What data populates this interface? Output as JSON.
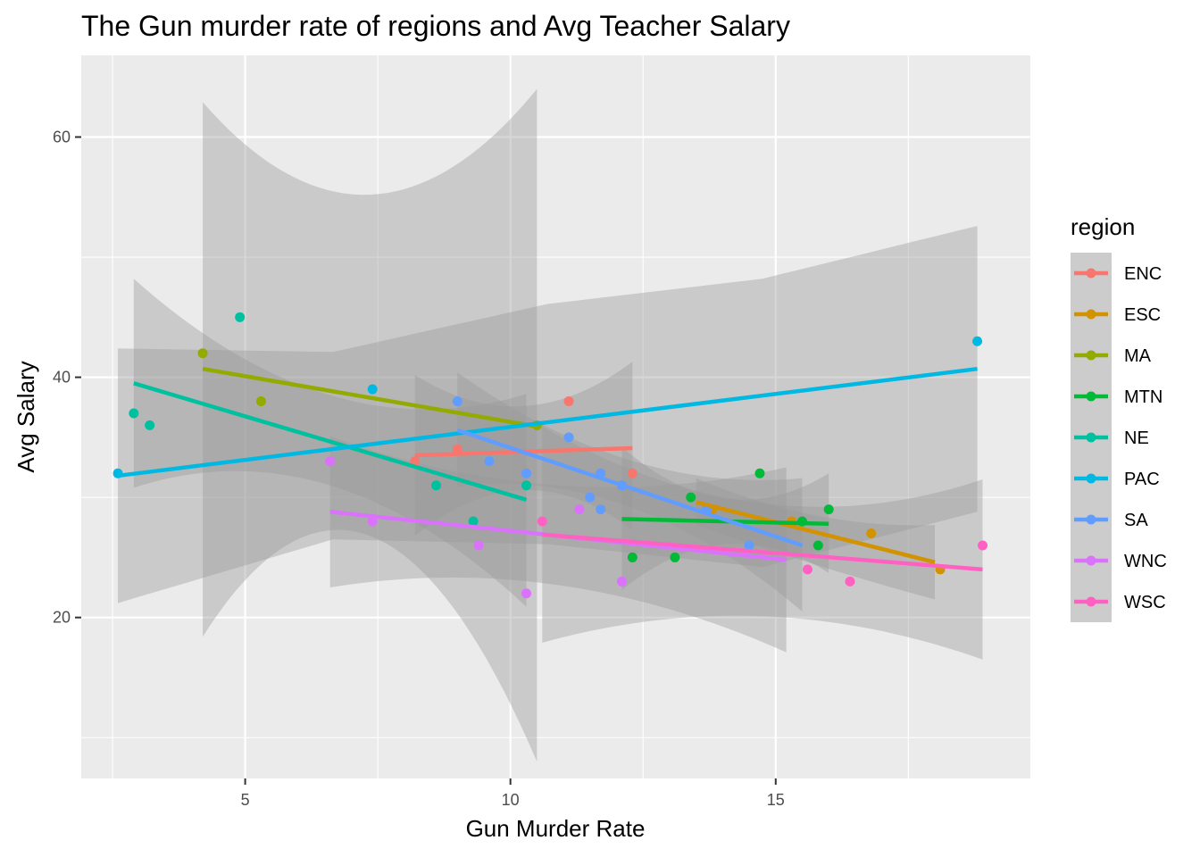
{
  "chart_data": {
    "type": "scatter",
    "title": "The Gun murder rate of regions and Avg Teacher Salary",
    "xlabel": "Gun Murder Rate",
    "ylabel": "Avg Salary",
    "xlim": [
      1.91,
      19.8
    ],
    "ylim": [
      6.6,
      66.8
    ],
    "x_ticks": [
      5,
      10,
      15
    ],
    "y_ticks": [
      20,
      40,
      60
    ],
    "grid": true,
    "legend": {
      "title": "region",
      "placement": "right"
    },
    "series": [
      {
        "name": "ENC",
        "color": "#F8766D",
        "points": [
          [
            8.2,
            33
          ],
          [
            9.0,
            34
          ],
          [
            11.1,
            38
          ],
          [
            12.3,
            32
          ],
          [
            10.3,
            32
          ]
        ],
        "fit": [
          [
            8.2,
            33.5
          ],
          [
            12.3,
            34.1
          ]
        ],
        "band": {
          "x": [
            8.2,
            10.25,
            12.3
          ],
          "lower": [
            26.8,
            30.6,
            27.3
          ],
          "upper": [
            40.2,
            37.6,
            41.3
          ]
        }
      },
      {
        "name": "ESC",
        "color": "#D39200",
        "points": [
          [
            13.8,
            29
          ],
          [
            15.3,
            28
          ],
          [
            16.8,
            27
          ],
          [
            18.1,
            24
          ]
        ],
        "fit": [
          [
            13.5,
            29.6
          ],
          [
            18.0,
            24.6
          ]
        ],
        "band": {
          "x": [
            13.5,
            15.75,
            18.0
          ],
          "lower": [
            27.7,
            24.4,
            21.5
          ],
          "upper": [
            31.6,
            28.5,
            27.7
          ]
        }
      },
      {
        "name": "MA",
        "color": "#93AA00",
        "points": [
          [
            4.2,
            42
          ],
          [
            5.3,
            38
          ],
          [
            10.5,
            36
          ]
        ],
        "fit": [
          [
            4.2,
            40.7
          ],
          [
            10.5,
            35.9
          ]
        ],
        "band": {
          "x": [
            4.2,
            7.35,
            10.5
          ],
          "lower": [
            18.4,
            26.8,
            8.0
          ],
          "upper": [
            62.9,
            55.2,
            64.0
          ]
        }
      },
      {
        "name": "MTN",
        "color": "#00BA38",
        "points": [
          [
            12.3,
            25
          ],
          [
            13.1,
            25
          ],
          [
            14.7,
            32
          ],
          [
            15.8,
            26
          ],
          [
            16.0,
            29
          ],
          [
            15.5,
            28
          ],
          [
            13.4,
            30
          ]
        ],
        "fit": [
          [
            12.1,
            28.2
          ],
          [
            16.0,
            27.8
          ]
        ],
        "band": {
          "x": [
            12.1,
            14.05,
            16.0
          ],
          "lower": [
            22.3,
            26.1,
            23.7
          ],
          "upper": [
            34.2,
            29.9,
            32.0
          ]
        }
      },
      {
        "name": "NE",
        "color": "#00C19F",
        "points": [
          [
            2.9,
            37
          ],
          [
            3.2,
            36
          ],
          [
            4.9,
            45
          ],
          [
            8.6,
            31
          ],
          [
            9.3,
            28
          ],
          [
            10.3,
            31
          ]
        ],
        "fit": [
          [
            2.9,
            39.5
          ],
          [
            10.3,
            29.8
          ]
        ],
        "band": {
          "x": [
            2.9,
            6.6,
            10.3
          ],
          "lower": [
            30.8,
            31.0,
            20.9
          ],
          "upper": [
            48.2,
            38.5,
            38.6
          ]
        }
      },
      {
        "name": "PAC",
        "color": "#00B9E3",
        "points": [
          [
            2.6,
            32
          ],
          [
            7.4,
            39
          ],
          [
            18.8,
            43
          ]
        ],
        "fit": [
          [
            2.6,
            31.8
          ],
          [
            18.8,
            40.7
          ]
        ],
        "band": {
          "x": [
            2.6,
            6.65,
            10.7,
            14.75,
            18.8
          ],
          "lower": [
            21.2,
            26.5,
            26.1,
            24.2,
            28.8
          ],
          "upper": [
            42.4,
            42.1,
            46.1,
            48.2,
            52.6
          ]
        }
      },
      {
        "name": "SA",
        "color": "#619CFF",
        "points": [
          [
            9.0,
            38
          ],
          [
            9.6,
            33
          ],
          [
            10.3,
            32
          ],
          [
            11.1,
            35
          ],
          [
            11.5,
            30
          ],
          [
            11.7,
            32
          ],
          [
            11.7,
            29
          ],
          [
            12.1,
            31
          ],
          [
            13.7,
            29
          ],
          [
            14.5,
            26
          ]
        ],
        "fit": [
          [
            9.0,
            35.6
          ],
          [
            15.5,
            26.0
          ]
        ],
        "band": {
          "x": [
            9.0,
            12.25,
            15.5
          ],
          "lower": [
            30.9,
            29.2,
            20.5
          ],
          "upper": [
            40.4,
            33.1,
            31.6
          ]
        }
      },
      {
        "name": "WNC",
        "color": "#DB72FB",
        "points": [
          [
            6.6,
            33
          ],
          [
            7.4,
            28
          ],
          [
            9.4,
            26
          ],
          [
            10.3,
            22
          ],
          [
            11.3,
            29
          ],
          [
            12.1,
            23
          ]
        ],
        "fit": [
          [
            6.6,
            28.8
          ],
          [
            15.2,
            24.8
          ]
        ],
        "band": {
          "x": [
            6.6,
            10.9,
            15.2
          ],
          "lower": [
            22.5,
            22.7,
            17.1
          ],
          "upper": [
            35.1,
            31.0,
            32.5
          ]
        }
      },
      {
        "name": "WSC",
        "color": "#FF61C3",
        "points": [
          [
            10.6,
            28
          ],
          [
            15.6,
            24
          ],
          [
            16.4,
            23
          ],
          [
            18.9,
            26
          ]
        ],
        "fit": [
          [
            10.6,
            26.9
          ],
          [
            18.9,
            24.0
          ]
        ],
        "band": {
          "x": [
            10.6,
            14.75,
            18.9
          ],
          "lower": [
            17.9,
            20.1,
            16.5
          ],
          "upper": [
            35.9,
            29.5,
            31.5
          ]
        }
      }
    ]
  }
}
